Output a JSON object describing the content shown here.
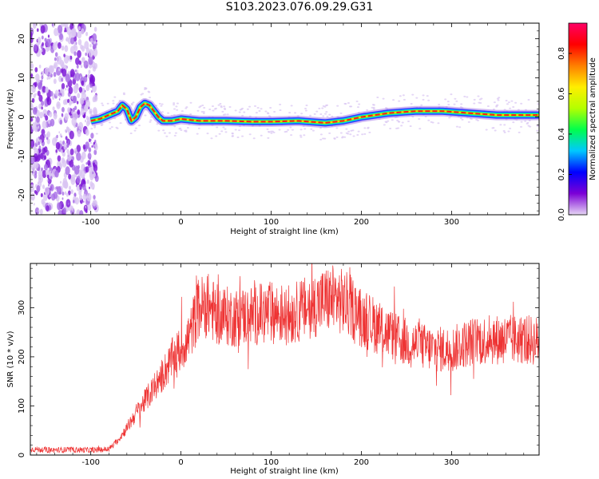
{
  "title": "S103.2023.076.09.29.G31",
  "chart_data": [
    {
      "type": "heatmap",
      "xlabel": "Height of straight line (km)",
      "ylabel": "Frequency (Hz)",
      "xlim": [
        -167,
        397
      ],
      "ylim": [
        -25,
        24
      ],
      "xticks": [
        -100,
        0,
        100,
        200,
        300
      ],
      "yticks": [
        -20,
        -10,
        0,
        10,
        20
      ],
      "colorbar": {
        "label": "Normalized spectral amplitude",
        "range": [
          0,
          0.95
        ],
        "ticks": [
          0.0,
          0.2,
          0.4,
          0.6,
          0.8
        ],
        "colormap": [
          "#e6d6f5",
          "#7b00d6",
          "#0000ff",
          "#00c8ff",
          "#00ff4c",
          "#b4ff00",
          "#ffee00",
          "#ff7f00",
          "#ff0000",
          "#ff0066"
        ]
      },
      "ridge": {
        "x": [
          -100,
          -90,
          -80,
          -70,
          -65,
          -60,
          -55,
          -50,
          -45,
          -40,
          -35,
          -30,
          -25,
          -20,
          -10,
          0,
          20,
          50,
          80,
          100,
          130,
          160,
          180,
          200,
          230,
          260,
          290,
          320,
          350,
          397
        ],
        "y": [
          -1,
          -0.5,
          0.5,
          1.5,
          3,
          2,
          -1,
          0,
          2.5,
          3.5,
          3,
          1.5,
          0,
          -1,
          -1,
          -0.5,
          -1,
          -1,
          -1.2,
          -1.2,
          -1,
          -1.5,
          -1,
          0,
          1,
          1.5,
          1.5,
          1,
          0.5,
          0.5
        ]
      },
      "noise_region_x": [
        -167,
        -100
      ]
    },
    {
      "type": "line",
      "xlabel": "Height of straight line (km)",
      "ylabel": "SNR (10 * v/v)",
      "xlim": [
        -167,
        397
      ],
      "ylim": [
        0,
        390
      ],
      "xticks": [
        -100,
        0,
        100,
        200,
        300
      ],
      "yticks": [
        0,
        100,
        200,
        300
      ],
      "color": "#ee3333",
      "series": [
        {
          "x": [
            -167,
            -140,
            -120,
            -100,
            -80,
            -70,
            -60,
            -50,
            -40,
            -30,
            -20,
            -10,
            0,
            10,
            15,
            20,
            30,
            40,
            60,
            80,
            100,
            120,
            140,
            160,
            170,
            180,
            190,
            200,
            210,
            220,
            240,
            260,
            280,
            300,
            320,
            340,
            360,
            380,
            397
          ],
          "y": [
            12,
            10,
            11,
            10,
            12,
            30,
            55,
            85,
            110,
            135,
            165,
            195,
            215,
            245,
            275,
            300,
            305,
            285,
            280,
            285,
            290,
            285,
            300,
            315,
            320,
            310,
            300,
            280,
            270,
            260,
            235,
            225,
            215,
            215,
            230,
            235,
            235,
            235,
            232
          ]
        }
      ]
    }
  ]
}
